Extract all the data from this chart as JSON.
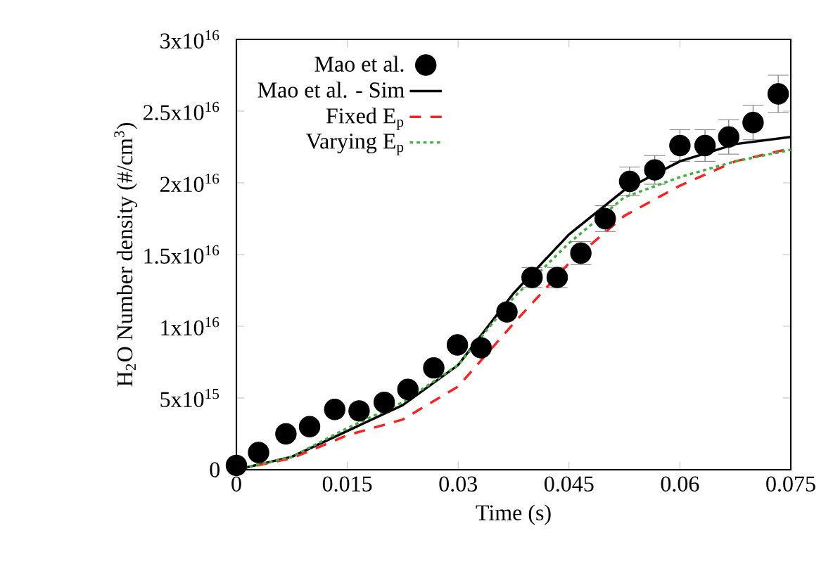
{
  "chart_data": {
    "type": "line",
    "xlabel": "Time (s)",
    "ylabel": "H$_{2}$O Number density (#/cm$^{3}$)",
    "xlim": [
      0,
      0.075
    ],
    "xticks": [
      0,
      0.015,
      0.03,
      0.045,
      0.06,
      0.075
    ],
    "ylim": [
      0,
      3e+16
    ],
    "yticks": [
      0,
      {
        "value": 5000000000000000.0,
        "label": "5x10$^{15}$"
      },
      {
        "value": 1e+16,
        "label": "1x10$^{16}$"
      },
      {
        "value": 1.5e+16,
        "label": "1.5x10$^{16}$"
      },
      {
        "value": 2e+16,
        "label": "2x10$^{16}$"
      },
      {
        "value": 2.5e+16,
        "label": "2.5x10$^{16}$"
      },
      {
        "value": 3e+16,
        "label": "3x10$^{16}$"
      }
    ],
    "legend": "top left",
    "series": [
      {
        "name": "Mao et al.",
        "type": "scatter",
        "marker": "circle",
        "color": "#000000",
        "x": [
          0,
          0.003,
          0.0067,
          0.0099,
          0.0133,
          0.0166,
          0.02,
          0.0232,
          0.0267,
          0.0299,
          0.0331,
          0.0366,
          0.04,
          0.0434,
          0.0466,
          0.0499,
          0.0532,
          0.0566,
          0.06,
          0.0634,
          0.0666,
          0.0699,
          0.0733
        ],
        "values": [
          300000000000000.0,
          1200000000000000.0,
          2500000000000000.0,
          3000000000000000.0,
          4200000000000000.0,
          4100000000000000.0,
          4700000000000000.0,
          5600000000000000.0,
          7100000000000000.0,
          8700000000000000.0,
          8500000000000000.0,
          1.1e+16,
          1.34e+16,
          1.34e+16,
          1.51e+16,
          1.75e+16,
          2.01e+16,
          2.09e+16,
          2.26e+16,
          2.26e+16,
          2.32e+16,
          2.42e+16,
          2.62e+16
        ],
        "errors": [
          null,
          null,
          null,
          null,
          null,
          null,
          null,
          null,
          null,
          null,
          null,
          null,
          700000000000000.0,
          700000000000000.0,
          800000000000000.0,
          900000000000000.0,
          1000000000000000.0,
          1000000000000000.0,
          1100000000000000.0,
          1100000000000000.0,
          1200000000000000.0,
          1200000000000000.0,
          1300000000000000.0
        ]
      },
      {
        "name": "Mao et al. - Sim",
        "line_style": "solid",
        "color": "#000000",
        "x": [
          0,
          0.0075,
          0.015,
          0.0225,
          0.03,
          0.0375,
          0.045,
          0.0525,
          0.06,
          0.0675,
          0.075
        ],
        "values": [
          0,
          900000000000000.0,
          2700000000000000.0,
          4500000000000000.0,
          7300000000000000.0,
          1.23e+16,
          1.64e+16,
          1.95e+16,
          2.15e+16,
          2.27e+16,
          2.32e+16
        ]
      },
      {
        "name": "Fixed E$_{p}$",
        "line_style": "dashed",
        "color": "#ff2020",
        "x": [
          0,
          0.0075,
          0.015,
          0.0225,
          0.03,
          0.0375,
          0.045,
          0.0525,
          0.06,
          0.0675,
          0.075
        ],
        "values": [
          0,
          800000000000000.0,
          2400000000000000.0,
          3500000000000000.0,
          5800000000000000.0,
          1.02e+16,
          1.44e+16,
          1.77e+16,
          1.98e+16,
          2.15e+16,
          2.24e+16
        ]
      },
      {
        "name": "Varying E$_{p}$",
        "line_style": "dotted",
        "color": "#40b040",
        "x": [
          0,
          0.0075,
          0.015,
          0.0225,
          0.03,
          0.0375,
          0.045,
          0.0525,
          0.06,
          0.0675,
          0.075
        ],
        "values": [
          0,
          900000000000000.0,
          2900000000000000.0,
          4700000000000000.0,
          7300000000000000.0,
          1.2e+16,
          1.58e+16,
          1.9e+16,
          2.04e+16,
          2.15e+16,
          2.23e+16
        ]
      }
    ]
  }
}
